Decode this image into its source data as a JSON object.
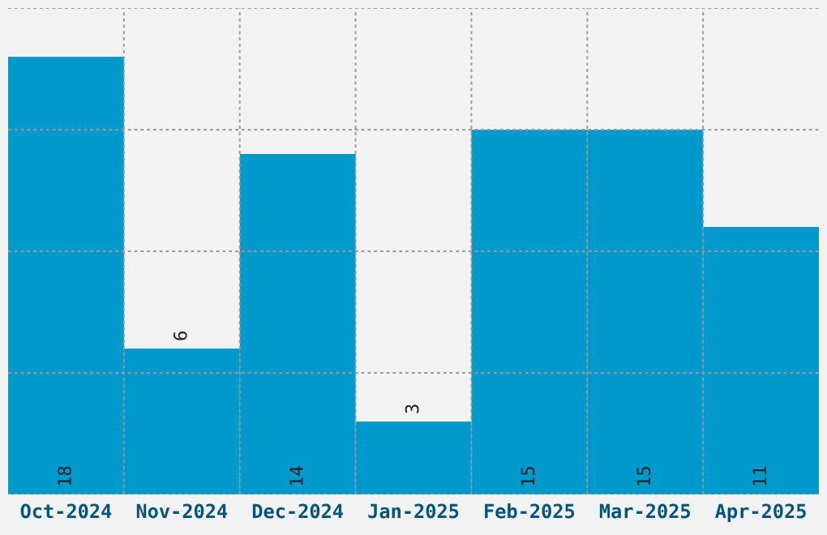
{
  "chart_data": {
    "type": "bar",
    "categories": [
      "Oct-2024",
      "Nov-2024",
      "Dec-2024",
      "Jan-2025",
      "Feb-2025",
      "Mar-2025",
      "Apr-2025"
    ],
    "values": [
      18,
      6,
      14,
      3,
      15,
      15,
      11
    ],
    "color": "#0099cc",
    "data_labels": true,
    "ylim": [
      0,
      20
    ],
    "yticks": [
      {
        "value": 0,
        "label": null
      },
      {
        "value": 5,
        "label": null
      },
      {
        "value": 10,
        "label": null
      },
      {
        "value": 15,
        "label": null
      },
      {
        "value": 20,
        "label": null
      }
    ],
    "tick_labels": "x",
    "grid": true
  }
}
